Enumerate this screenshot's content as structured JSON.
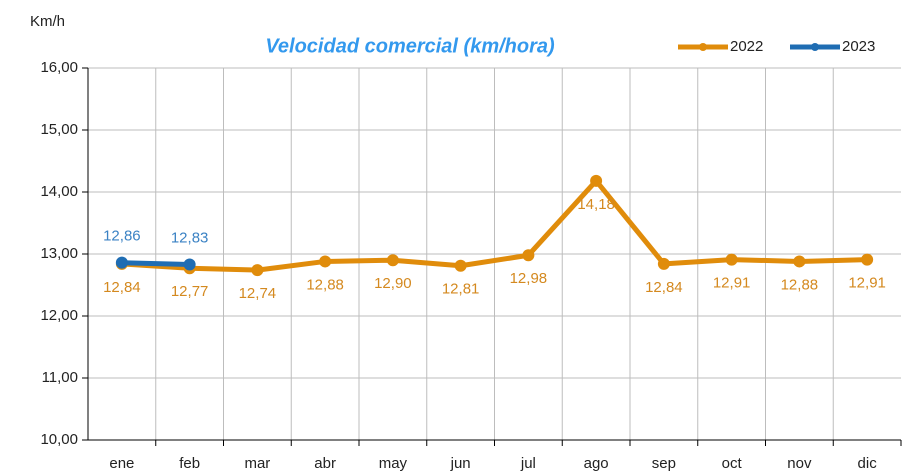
{
  "chart_data": {
    "type": "line",
    "title": "Velocidad comercial (km/hora)",
    "y_label": "Km/h",
    "categories": [
      "ene",
      "feb",
      "mar",
      "abr",
      "may",
      "jun",
      "jul",
      "ago",
      "sep",
      "oct",
      "nov",
      "dic"
    ],
    "series": [
      {
        "name": "2022",
        "color": "#e08c0b",
        "label_color": "#d4891f",
        "values": [
          12.84,
          12.77,
          12.74,
          12.88,
          12.9,
          12.81,
          12.98,
          14.18,
          12.84,
          12.91,
          12.88,
          12.91
        ],
        "value_labels": [
          "12,84",
          "12,77",
          "12,74",
          "12,88",
          "12,90",
          "12,81",
          "12,98",
          "14,18",
          "12,84",
          "12,91",
          "12,88",
          "12,91"
        ]
      },
      {
        "name": "2023",
        "color": "#1f6db3",
        "label_color": "#3b82c4",
        "values": [
          12.86,
          12.83,
          null,
          null,
          null,
          null,
          null,
          null,
          null,
          null,
          null,
          null
        ],
        "value_labels": [
          "12,86",
          "12,83",
          null,
          null,
          null,
          null,
          null,
          null,
          null,
          null,
          null,
          null
        ]
      }
    ],
    "ylim": [
      10,
      16
    ],
    "yticks": [
      {
        "value": 10,
        "label": "10,00"
      },
      {
        "value": 11,
        "label": "11,00"
      },
      {
        "value": 12,
        "label": "12,00"
      },
      {
        "value": 13,
        "label": "13,00"
      },
      {
        "value": 14,
        "label": "14,00"
      },
      {
        "value": 15,
        "label": "15,00"
      },
      {
        "value": 16,
        "label": "16,00"
      }
    ],
    "grid": true,
    "legend": "top-right"
  }
}
